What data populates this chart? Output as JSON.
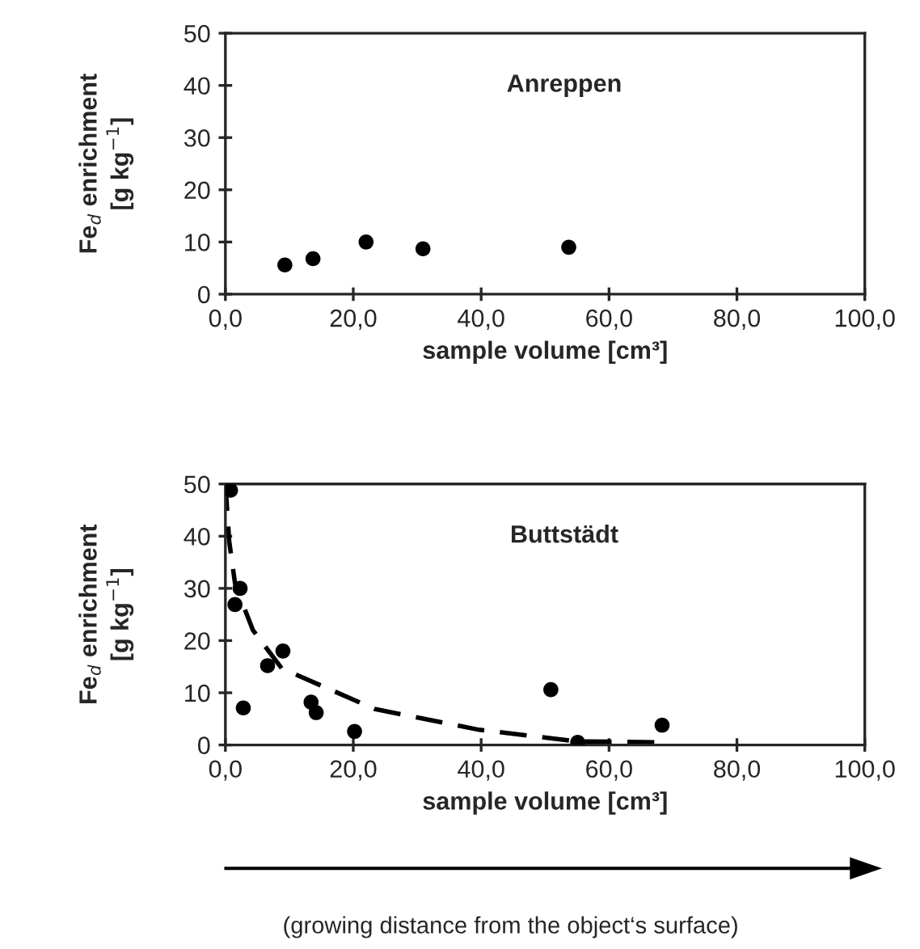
{
  "chart_data": [
    {
      "type": "scatter",
      "title": "Anreppen",
      "xlabel": "sample volume [cm³]",
      "ylabel": "Fe$_{d}$ enrichment\n[g kg$^{−1}$]",
      "xlim": [
        0,
        100
      ],
      "xticks": [
        {
          "value": 0,
          "label": "0,0"
        },
        {
          "value": 20,
          "label": "20,0"
        },
        {
          "value": 40,
          "label": "40,0"
        },
        {
          "value": 60,
          "label": "60,0"
        },
        {
          "value": 80,
          "label": "80,0"
        },
        {
          "value": 100,
          "label": "100,0"
        }
      ],
      "ylim": [
        0,
        50
      ],
      "yticks": [
        0,
        10,
        20,
        30,
        40,
        50
      ],
      "grid": false,
      "marker": "circle",
      "series": [
        {
          "color": "#000000",
          "x": [
            9.3,
            13.7,
            22,
            30.9,
            53.7
          ],
          "values": [
            5.6,
            6.8,
            10,
            8.7,
            9.0
          ]
        }
      ]
    },
    {
      "type": "scatter",
      "title": "Buttstädt",
      "xlabel": "sample volume [cm³]",
      "ylabel": "Fe$_{d}$ enrichment\n[g kg$^{−1}$]",
      "xlim": [
        0,
        100
      ],
      "xticks": [
        {
          "value": 0,
          "label": "0,0"
        },
        {
          "value": 20,
          "label": "20,0"
        },
        {
          "value": 40,
          "label": "40,0"
        },
        {
          "value": 60,
          "label": "60,0"
        },
        {
          "value": 80,
          "label": "80,0"
        },
        {
          "value": 100,
          "label": "100,0"
        }
      ],
      "ylim": [
        0,
        50
      ],
      "yticks": [
        0,
        10,
        20,
        30,
        40,
        50
      ],
      "grid": false,
      "annotations": [
        "(growing distance from the object‘s surface)"
      ],
      "series": [
        {
          "color": "#000000",
          "marker": "circle",
          "x": [
            0.8,
            2.3,
            1.5,
            2.8,
            6.6,
            9,
            13.4,
            14.2,
            20.2,
            50.9,
            55.1,
            68.3
          ],
          "values": [
            48.8,
            30,
            26.9,
            7.1,
            15.2,
            18,
            8.2,
            6.2,
            2.6,
            10.6,
            0.5,
            3.8
          ]
        },
        {
          "type": "line",
          "marker": "none",
          "line_style": "dashed",
          "color": "#000000",
          "x": [
            0,
            0.6,
            1.5,
            2.5,
            4.3,
            8.8,
            23.3,
            39.7,
            55,
            68.3
          ],
          "values": [
            50,
            39,
            31,
            27.7,
            22,
            14.7,
            6.9,
            2.9,
            0.7,
            0.5
          ]
        }
      ]
    }
  ]
}
